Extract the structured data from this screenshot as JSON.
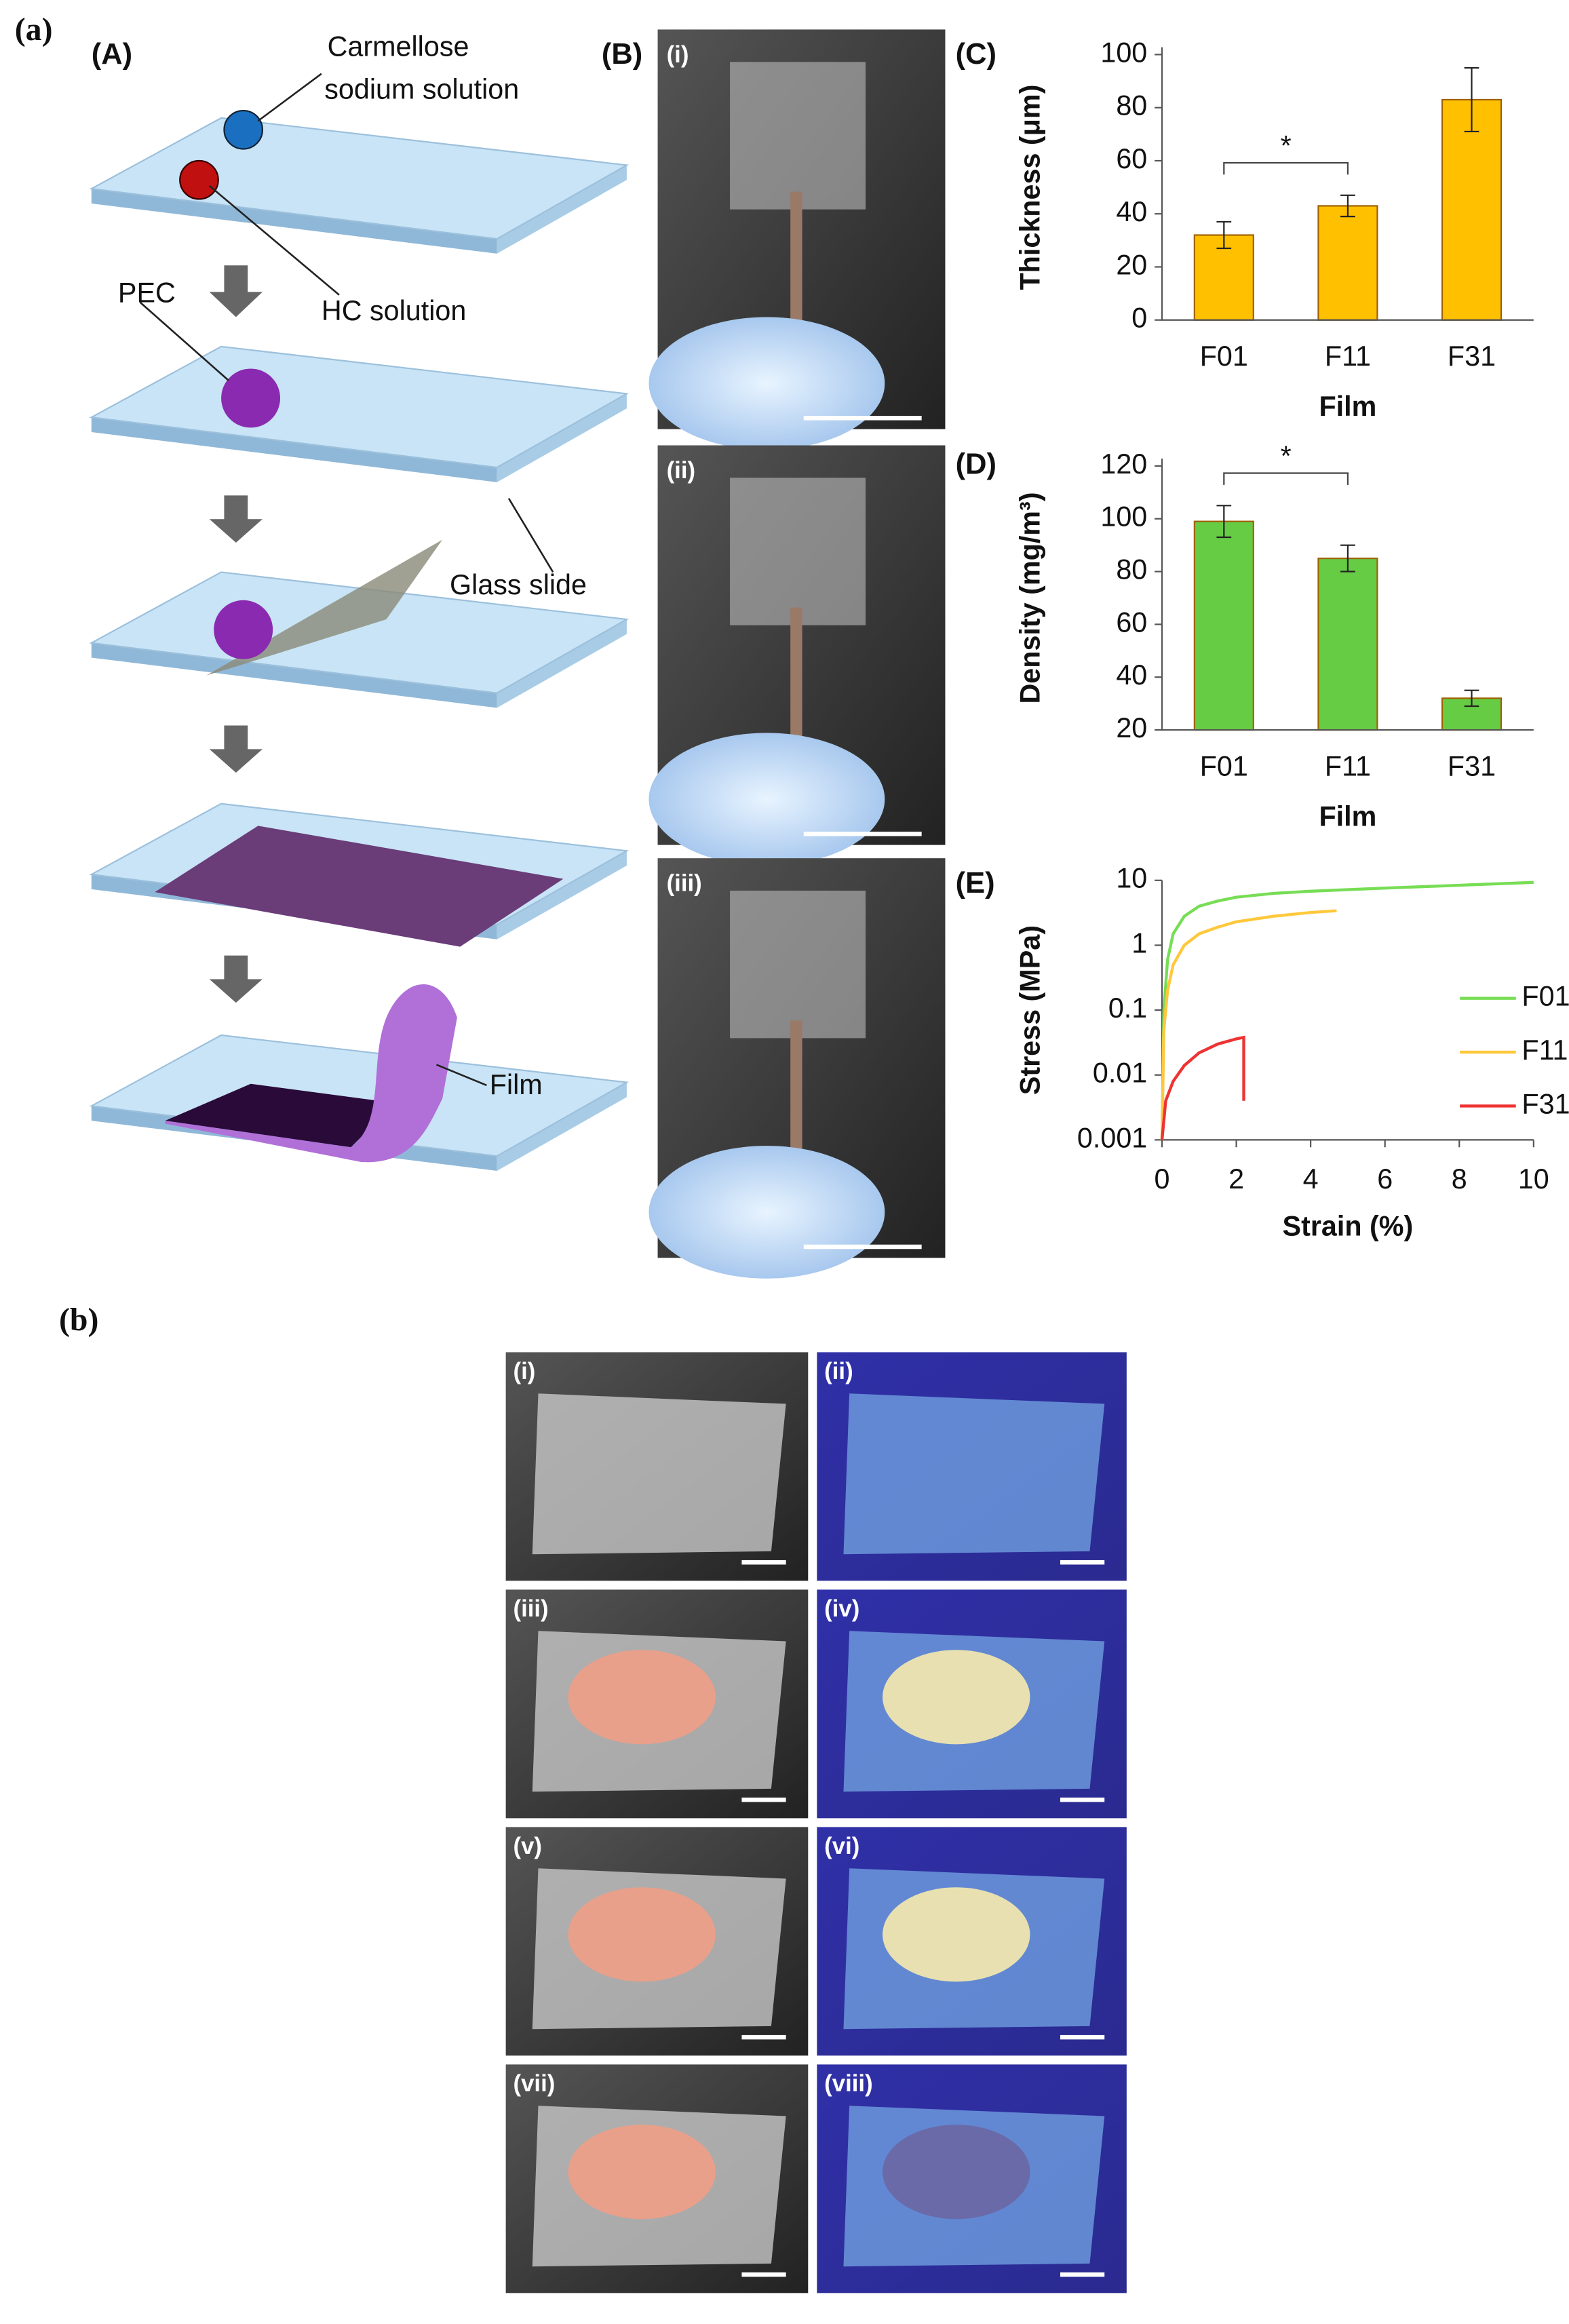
{
  "panel_labels": {
    "a": "(a)",
    "A": "(A)",
    "B": "(B)",
    "C": "(C)",
    "D": "(D)",
    "E": "(E)",
    "b": "(b)"
  },
  "schematic": {
    "carmellose_1": "Carmellose",
    "carmellose_2": "sodium solution",
    "hc": "HC solution",
    "pec": "PEC",
    "glass": "Glass slide",
    "film": "Film"
  },
  "photos_B": [
    "(i)",
    "(ii)",
    "(iii)"
  ],
  "photos_b": [
    "(i)",
    "(ii)",
    "(iii)",
    "(iv)",
    "(v)",
    "(vi)",
    "(vii)",
    "(viii)"
  ],
  "chart_data": [
    {
      "type": "bar",
      "categories": [
        "F01",
        "F11",
        "F31"
      ],
      "values": [
        32,
        43,
        83
      ],
      "errors": [
        5,
        4,
        12
      ],
      "color": "#ffc000",
      "ylim": [
        0,
        100
      ],
      "yticks": [
        0,
        20,
        40,
        60,
        80,
        100
      ],
      "y_label": "Thickness (μm)",
      "x_label": "Film",
      "significance": {
        "label": "*",
        "between": [
          "F01",
          "F11"
        ]
      }
    },
    {
      "type": "bar",
      "categories": [
        "F01",
        "F11",
        "F31"
      ],
      "values": [
        99,
        85,
        32
      ],
      "errors": [
        6,
        5,
        3
      ],
      "color": "#66cc44",
      "ylim": [
        20,
        120
      ],
      "yticks": [
        20,
        40,
        60,
        80,
        100,
        120
      ],
      "y_label": "Density (mg/m³)",
      "x_label": "Film",
      "significance": {
        "label": "*",
        "between": [
          "F01",
          "F11"
        ]
      }
    },
    {
      "type": "line",
      "log_y": true,
      "xlim": [
        0,
        10
      ],
      "xticks": [
        0,
        2,
        4,
        6,
        8,
        10
      ],
      "ylim": [
        0.001,
        10
      ],
      "yticks": [
        0.001,
        0.01,
        0.1,
        1,
        10
      ],
      "y_label": "Stress (MPa)",
      "x_label": "Strain (%)",
      "series": [
        {
          "name": "F01",
          "color": "#77dd55",
          "x": [
            0,
            0.05,
            0.15,
            0.3,
            0.6,
            1,
            1.5,
            2,
            3,
            4,
            6,
            8,
            10
          ],
          "values": [
            0.001,
            0.1,
            0.6,
            1.5,
            2.8,
            4,
            4.8,
            5.5,
            6.3,
            6.8,
            7.6,
            8.4,
            9.3
          ]
        },
        {
          "name": "F11",
          "color": "#ffc83c",
          "x": [
            0,
            0.05,
            0.15,
            0.3,
            0.6,
            1,
            1.5,
            2,
            3,
            4,
            4.7
          ],
          "values": [
            0.001,
            0.05,
            0.2,
            0.5,
            1,
            1.5,
            1.9,
            2.3,
            2.8,
            3.2,
            3.4
          ]
        },
        {
          "name": "F31",
          "color": "#ee3333",
          "x": [
            0,
            0.1,
            0.3,
            0.6,
            1,
            1.5,
            2,
            2.2,
            2.2
          ],
          "values": [
            0.001,
            0.004,
            0.008,
            0.014,
            0.022,
            0.03,
            0.036,
            0.038,
            0.004
          ]
        }
      ]
    }
  ]
}
